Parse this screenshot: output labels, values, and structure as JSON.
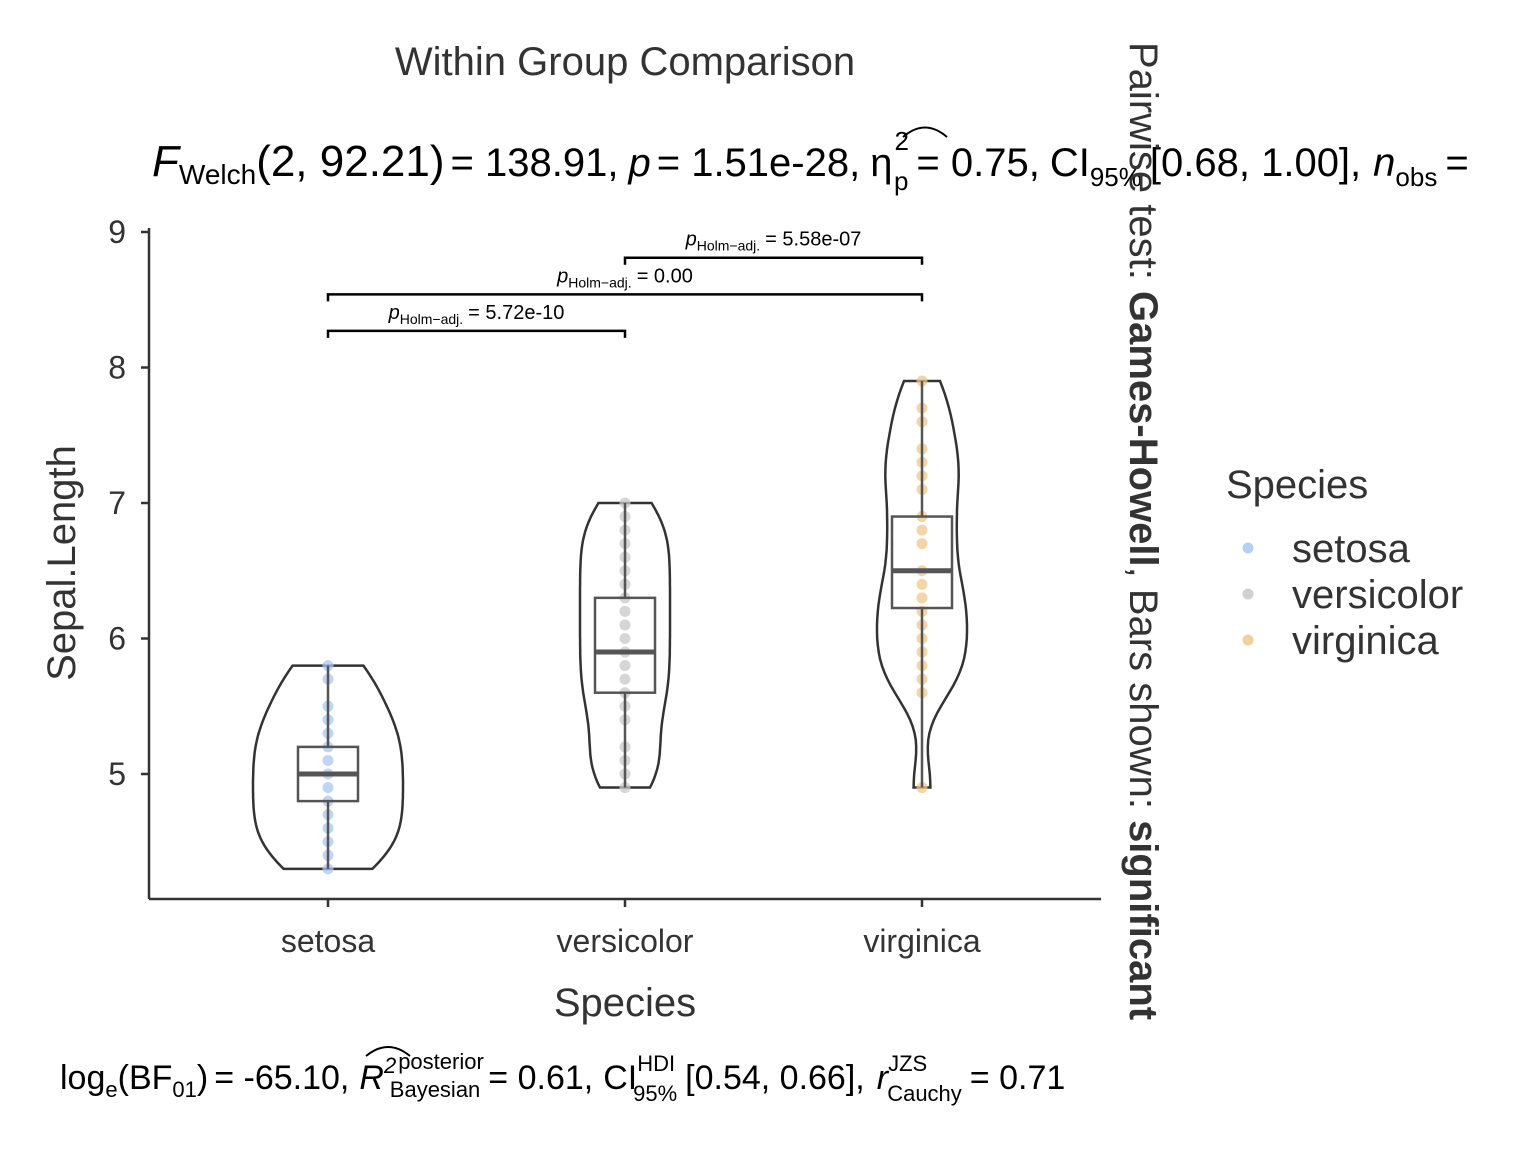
{
  "chart_data": {
    "type": "violin",
    "title": "Within Group Comparison",
    "subtitle": {
      "stat_name": "F",
      "stat_sub": "Welch",
      "df": "(2, 92.21)",
      "stat_value": "= 138.91,",
      "p_label": "p",
      "p_value": "= 1.51e-28,",
      "es_symbol": "η",
      "es_sup": "2",
      "es_sub": "p",
      "es_value": "= 0.75,",
      "ci_label": "CI",
      "ci_sub": "95%",
      "ci_value": "[0.68, 1.00],",
      "n_label": "n",
      "n_sub": "obs",
      "n_value": "="
    },
    "caption": {
      "prefix": "log",
      "log_sub": "e",
      "bf_open": "(BF",
      "bf_sub": "01",
      "bf_close": ")",
      "bf_value": "= -65.10,",
      "r2_label": "R",
      "r2_sup": "2",
      "r2_sup2": "posterior",
      "r2_sub": "Bayesian",
      "r2_value": "= 0.61,",
      "ci_label": "CI",
      "ci_sup": "HDI",
      "ci_sub": "95%",
      "ci_value": "[0.54, 0.66],",
      "r_label": "r",
      "r_sup": "JZS",
      "r_sub": "Cauchy",
      "r_value": "= 0.71"
    },
    "side_label": {
      "prefix": "Pairwise test: ",
      "method": "Games-Howell",
      "middle": ", Bars shown: ",
      "shown": "significant"
    },
    "xlabel": "Species",
    "ylabel": "Sepal.Length",
    "categories": [
      "setosa",
      "versicolor",
      "virginica"
    ],
    "ylim": [
      4.1,
      9.05
    ],
    "yticks": [
      "5",
      "6",
      "7",
      "8",
      "9"
    ],
    "colors": {
      "setosa": "#a8c8f0",
      "versicolor": "#c8c8c8",
      "virginica": "#f0c888"
    },
    "legend": {
      "title": "Species",
      "position": "right",
      "entries": [
        "setosa",
        "versicolor",
        "virginica"
      ]
    },
    "boxes": [
      {
        "category": "setosa",
        "min": 4.3,
        "q1": 4.8,
        "median": 5.0,
        "q3": 5.2,
        "max": 5.8
      },
      {
        "category": "versicolor",
        "min": 4.9,
        "q1": 5.6,
        "median": 5.9,
        "q3": 6.3,
        "max": 7.0
      },
      {
        "category": "virginica",
        "min": 4.9,
        "q1": 6.225,
        "median": 6.5,
        "q3": 6.9,
        "max": 7.9
      }
    ],
    "points": [
      {
        "category": "setosa",
        "values": [
          4.3,
          4.4,
          4.5,
          4.6,
          4.7,
          4.8,
          4.9,
          5.0,
          5.1,
          5.2,
          5.3,
          5.4,
          5.5,
          5.7,
          5.8
        ]
      },
      {
        "category": "versicolor",
        "values": [
          4.9,
          5.0,
          5.1,
          5.2,
          5.4,
          5.5,
          5.6,
          5.7,
          5.8,
          5.9,
          6.0,
          6.1,
          6.2,
          6.3,
          6.4,
          6.5,
          6.6,
          6.7,
          6.8,
          6.9,
          7.0
        ]
      },
      {
        "category": "virginica",
        "values": [
          4.9,
          5.6,
          5.7,
          5.8,
          5.9,
          6.0,
          6.1,
          6.2,
          6.3,
          6.4,
          6.5,
          6.7,
          6.8,
          6.9,
          7.1,
          7.2,
          7.3,
          7.4,
          7.6,
          7.7,
          7.9
        ]
      }
    ],
    "pairwise": [
      {
        "from": "setosa",
        "to": "versicolor",
        "y": 8.27,
        "label_p": "p",
        "label_sub": "Holm−adj.",
        "label_value": "= 5.72e-10"
      },
      {
        "from": "setosa",
        "to": "virginica",
        "y": 8.54,
        "label_p": "p",
        "label_sub": "Holm−adj.",
        "label_value": "= 0.00"
      },
      {
        "from": "versicolor",
        "to": "virginica",
        "y": 8.81,
        "label_p": "p",
        "label_sub": "Holm−adj.",
        "label_value": "= 5.58e-07"
      }
    ],
    "grid": false
  }
}
